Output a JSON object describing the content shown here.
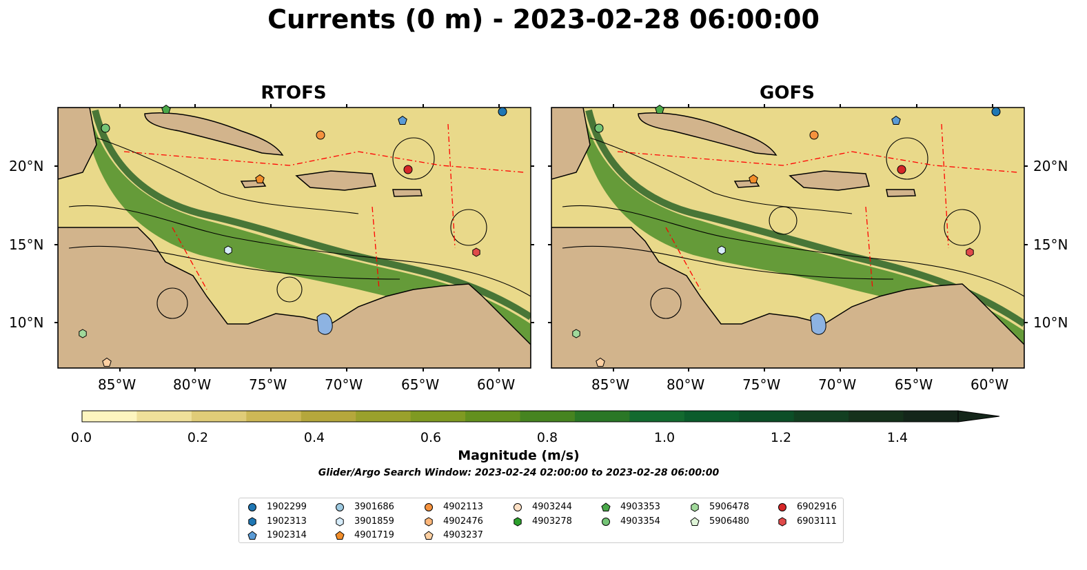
{
  "title": "Currents (0 m) - 2023-02-28 06:00:00",
  "panels": [
    {
      "title": "RTOFS"
    },
    {
      "title": "GOFS"
    }
  ],
  "axes": {
    "lon_ticks": [
      "85°W",
      "80°W",
      "75°W",
      "70°W",
      "65°W",
      "60°W"
    ],
    "lat_ticks": [
      "20°N",
      "15°N",
      "10°N"
    ]
  },
  "colorbar": {
    "label": "Magnitude (m/s)",
    "ticks": [
      "0.0",
      "0.2",
      "0.4",
      "0.6",
      "0.8",
      "1.0",
      "1.2",
      "1.4"
    ],
    "colors": [
      "#fdf5bf",
      "#efe09a",
      "#e0cc78",
      "#cdb856",
      "#b5a73c",
      "#9aa12c",
      "#7f9a22",
      "#63901e",
      "#468420",
      "#2a7726",
      "#136a2f",
      "#0b5c2c",
      "#0c4e27",
      "#123f21",
      "#15311b",
      "#14261a"
    ]
  },
  "search_window": "Glider/Argo Search Window: 2023-02-24 02:00:00 to 2023-02-28 06:00:00",
  "legend": [
    {
      "id": "1902299",
      "marker": "circle",
      "color": "#1f77b4"
    },
    {
      "id": "1902313",
      "marker": "hexagon",
      "color": "#1f77b4"
    },
    {
      "id": "1902314",
      "marker": "pentagon",
      "color": "#5b9bd5"
    },
    {
      "id": "3901686",
      "marker": "circle",
      "color": "#9ecae1"
    },
    {
      "id": "3901859",
      "marker": "hexagon",
      "color": "#d6ecfa"
    },
    {
      "id": "4901719",
      "marker": "pentagon",
      "color": "#f28e2b"
    },
    {
      "id": "4902113",
      "marker": "circle",
      "color": "#f5923e"
    },
    {
      "id": "4902476",
      "marker": "hexagon",
      "color": "#fdb77a"
    },
    {
      "id": "4903237",
      "marker": "pentagon",
      "color": "#fdd0a2"
    },
    {
      "id": "4903244",
      "marker": "circle",
      "color": "#fde0c5"
    },
    {
      "id": "4903278",
      "marker": "hexagon",
      "color": "#2ca02c"
    },
    {
      "id": "4903353",
      "marker": "pentagon",
      "color": "#4aa84a"
    },
    {
      "id": "4903354",
      "marker": "circle",
      "color": "#74c476"
    },
    {
      "id": "5906478",
      "marker": "hexagon",
      "color": "#a1d99b"
    },
    {
      "id": "5906480",
      "marker": "pentagon",
      "color": "#dff5d8"
    },
    {
      "id": "6902916",
      "marker": "circle",
      "color": "#d62728"
    },
    {
      "id": "6903111",
      "marker": "hexagon",
      "color": "#e04a4a"
    }
  ],
  "map_style": {
    "land": "#d2b48c",
    "water_low": "#fbf1b8",
    "water_high": "#3d7c22",
    "streamline": "#000000",
    "eez_boundary": "#ff0000",
    "lakes": "#8db3e2"
  }
}
